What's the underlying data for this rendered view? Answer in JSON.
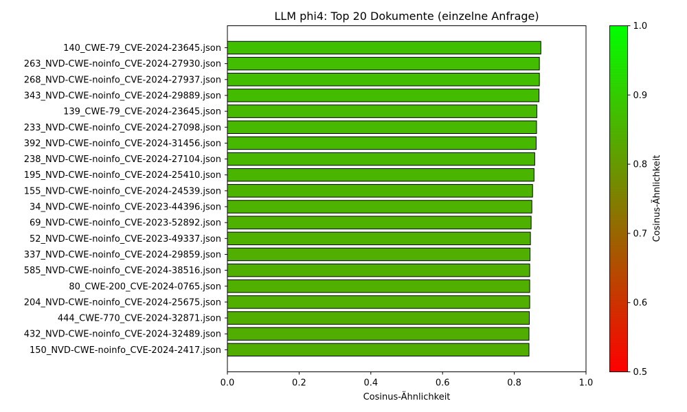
{
  "chart_data": {
    "type": "bar",
    "orientation": "horizontal",
    "title": "LLM phi4: Top 20 Dokumente (einzelne Anfrage)",
    "xlabel": "Cosinus-Ähnlichkeit",
    "ylabel": "",
    "xlim": [
      0,
      1.0
    ],
    "x_ticks": [
      "0.0",
      "0.2",
      "0.4",
      "0.6",
      "0.8",
      "1.0"
    ],
    "categories": [
      "140_CWE-79_CVE-2024-23645.json",
      "263_NVD-CWE-noinfo_CVE-2024-27930.json",
      "268_NVD-CWE-noinfo_CVE-2024-27937.json",
      "343_NVD-CWE-noinfo_CVE-2024-29889.json",
      "139_CWE-79_CVE-2024-23645.json",
      "233_NVD-CWE-noinfo_CVE-2024-27098.json",
      "392_NVD-CWE-noinfo_CVE-2024-31456.json",
      "238_NVD-CWE-noinfo_CVE-2024-27104.json",
      "195_NVD-CWE-noinfo_CVE-2024-25410.json",
      "155_NVD-CWE-noinfo_CVE-2024-24539.json",
      "34_NVD-CWE-noinfo_CVE-2023-44396.json",
      "69_NVD-CWE-noinfo_CVE-2023-52892.json",
      "52_NVD-CWE-noinfo_CVE-2023-49337.json",
      "337_NVD-CWE-noinfo_CVE-2024-29859.json",
      "585_NVD-CWE-noinfo_CVE-2024-38516.json",
      "80_CWE-200_CVE-2024-0765.json",
      "204_NVD-CWE-noinfo_CVE-2024-25675.json",
      "444_CWE-770_CVE-2024-32871.json",
      "432_NVD-CWE-noinfo_CVE-2024-32489.json",
      "150_NVD-CWE-noinfo_CVE-2024-2417.json"
    ],
    "values": [
      0.874,
      0.87,
      0.87,
      0.869,
      0.863,
      0.862,
      0.861,
      0.857,
      0.855,
      0.851,
      0.849,
      0.847,
      0.845,
      0.844,
      0.843,
      0.843,
      0.843,
      0.842,
      0.841,
      0.841
    ],
    "bar_edge_color": "#000000",
    "colormap": {
      "label": "Cosinus-Ähnlichkeit",
      "range": [
        0.5,
        1.0
      ],
      "ticks": [
        "0.5",
        "0.6",
        "0.7",
        "0.8",
        "0.9",
        "1.0"
      ],
      "color_low": "#ff0000",
      "color_high": "#00ff00"
    },
    "grid": false,
    "legend": "none"
  }
}
